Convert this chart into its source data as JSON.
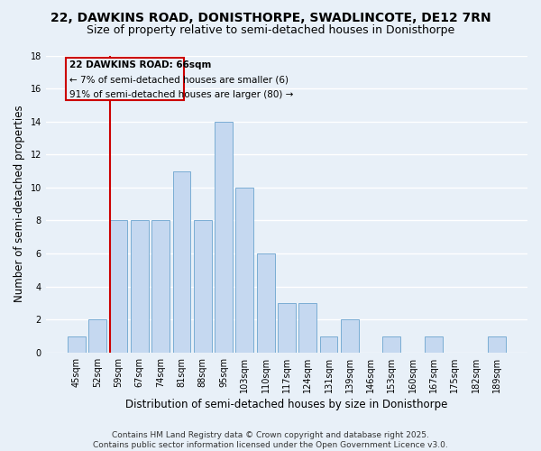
{
  "title_line1": "22, DAWKINS ROAD, DONISTHORPE, SWADLINCOTE, DE12 7RN",
  "title_line2": "Size of property relative to semi-detached houses in Donisthorpe",
  "categories": [
    "45sqm",
    "52sqm",
    "59sqm",
    "67sqm",
    "74sqm",
    "81sqm",
    "88sqm",
    "95sqm",
    "103sqm",
    "110sqm",
    "117sqm",
    "124sqm",
    "131sqm",
    "139sqm",
    "146sqm",
    "153sqm",
    "160sqm",
    "167sqm",
    "175sqm",
    "182sqm",
    "189sqm"
  ],
  "values": [
    1,
    2,
    8,
    8,
    8,
    11,
    8,
    14,
    10,
    6,
    3,
    3,
    1,
    2,
    0,
    1,
    0,
    1,
    0,
    0,
    1
  ],
  "bar_color": "#c5d8f0",
  "bar_edge_color": "#7aadd4",
  "ylabel": "Number of semi-detached properties",
  "xlabel": "Distribution of semi-detached houses by size in Donisthorpe",
  "ylim": [
    0,
    18
  ],
  "yticks": [
    0,
    2,
    4,
    6,
    8,
    10,
    12,
    14,
    16,
    18
  ],
  "vline_color": "#cc0000",
  "vline_label": "22 DAWKINS ROAD: 66sqm",
  "annotation_line1": "← 7% of semi-detached houses are smaller (6)",
  "annotation_line2": "91% of semi-detached houses are larger (80) →",
  "annotation_box_color": "#cc0000",
  "background_color": "#e8f0f8",
  "grid_color": "#ffffff",
  "footer_line1": "Contains HM Land Registry data © Crown copyright and database right 2025.",
  "footer_line2": "Contains public sector information licensed under the Open Government Licence v3.0.",
  "title_fontsize": 10,
  "subtitle_fontsize": 9,
  "xlabel_fontsize": 8.5,
  "ylabel_fontsize": 8.5,
  "tick_fontsize": 7,
  "footer_fontsize": 6.5,
  "annot_fontsize": 7.5
}
